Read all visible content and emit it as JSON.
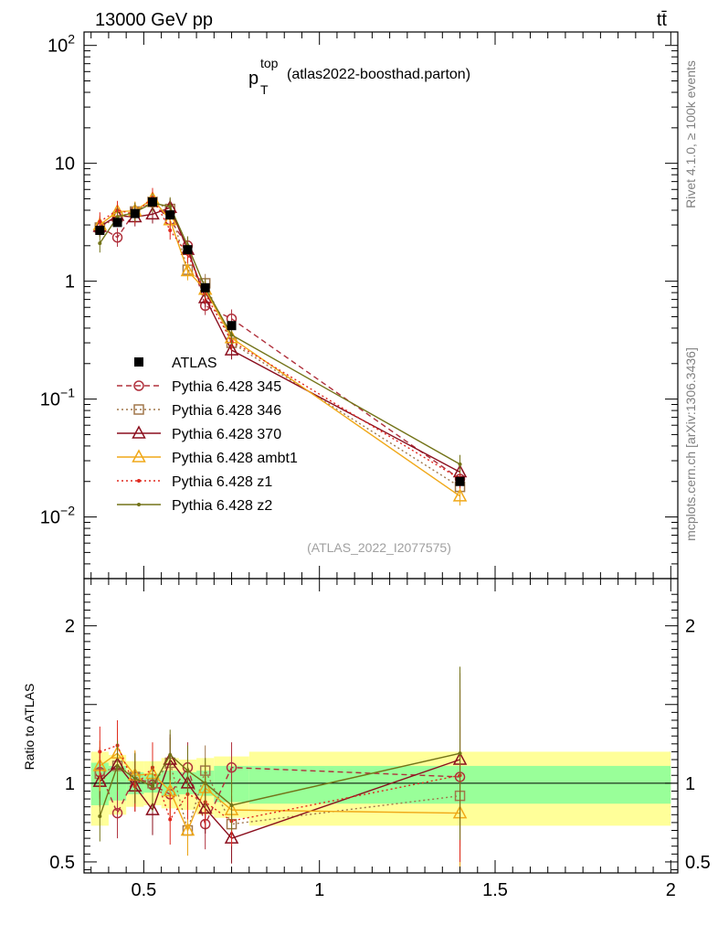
{
  "header": {
    "left_label": "13000 GeV pp",
    "right_label": "tt̄"
  },
  "main_panel": {
    "observable_symbol": "p",
    "observable_sub": "T",
    "observable_sup": "top",
    "observable_note": "(atlas2022-boosthad.parton)",
    "analysis_id": "(ATLAS_2022_I2077575)"
  },
  "side_labels": {
    "rivet": "Rivet 4.1.0, ≥ 100k events",
    "mcplots": "mcplots.cern.ch [arXiv:1306.3436]"
  },
  "ratio_panel": {
    "ylabel": "Ratio to ATLAS"
  },
  "chart_data": {
    "type": "line",
    "title": "p_T^top (atlas2022-boosthad.parton)",
    "xlabel": "",
    "ylabel": "",
    "x": [
      0.375,
      0.425,
      0.475,
      0.525,
      0.575,
      0.625,
      0.675,
      0.75,
      1.4
    ],
    "xlim": [
      0.33,
      2.02
    ],
    "ylim": [
      0.003,
      130
    ],
    "yscale": "log",
    "y_ticks": [
      {
        "value": 0.01,
        "base": "10",
        "exp": "−2"
      },
      {
        "value": 0.1,
        "base": "10",
        "exp": "−1"
      },
      {
        "value": 1,
        "base": "1",
        "exp": ""
      },
      {
        "value": 10,
        "base": "10",
        "exp": ""
      },
      {
        "value": 100,
        "base": "10",
        "exp": "2"
      }
    ],
    "x_ticks": [
      {
        "value": 0.5,
        "label": "0.5"
      },
      {
        "value": 1.0,
        "label": "1"
      },
      {
        "value": 1.5,
        "label": "1.5"
      },
      {
        "value": 2.0,
        "label": "2"
      }
    ],
    "data_series": {
      "name": "ATLAS",
      "values": [
        2.7,
        3.15,
        3.75,
        4.7,
        3.65,
        1.85,
        0.88,
        0.42,
        0.02
      ]
    },
    "series": [
      {
        "name": "Pythia 6.428 345",
        "color": "#b0303c",
        "style": "dashed",
        "marker": "circle",
        "values": [
          2.9,
          2.35,
          3.9,
          4.65,
          3.3,
          2.0,
          0.62,
          0.48,
          0.021
        ]
      },
      {
        "name": "Pythia 6.428 346",
        "color": "#a0764a",
        "style": "dotted",
        "marker": "square",
        "values": [
          2.85,
          3.5,
          3.9,
          4.7,
          4.1,
          1.25,
          0.96,
          0.3,
          0.018
        ]
      },
      {
        "name": "Pythia 6.428 370",
        "color": "#8b0f1e",
        "style": "solid",
        "marker": "triangle",
        "values": [
          2.9,
          3.6,
          3.5,
          3.7,
          4.2,
          1.85,
          0.72,
          0.26,
          0.024
        ]
      },
      {
        "name": "Pythia 6.428 ambt1",
        "color": "#f0a818",
        "style": "solid",
        "marker": "triangle",
        "values": [
          3.0,
          3.9,
          3.95,
          5.0,
          3.3,
          1.22,
          0.85,
          0.33,
          0.015
        ]
      },
      {
        "name": "Pythia 6.428 z1",
        "color": "#e0281e",
        "style": "dotted",
        "marker": "dot",
        "values": [
          3.2,
          4.0,
          3.7,
          5.15,
          2.7,
          1.7,
          0.78,
          0.31,
          0.021
        ]
      },
      {
        "name": "Pythia 6.428 z2",
        "color": "#737318",
        "style": "solid",
        "marker": "dot",
        "values": [
          2.1,
          3.5,
          3.85,
          4.6,
          4.3,
          2.0,
          0.88,
          0.35,
          0.028
        ]
      }
    ],
    "ratio": {
      "ylim": [
        0.43,
        2.3
      ],
      "y_ticks": [
        {
          "value": 0.5,
          "label": "0.5"
        },
        {
          "value": 1,
          "label": "1"
        },
        {
          "value": 2,
          "label": "2"
        }
      ],
      "bands": [
        {
          "x0": 0.35,
          "x1": 0.4,
          "inner": [
            0.86,
            1.13
          ],
          "outer": [
            0.73,
            1.2
          ]
        },
        {
          "x0": 0.4,
          "x1": 0.45,
          "inner": [
            0.89,
            1.11
          ],
          "outer": [
            0.8,
            1.18
          ]
        },
        {
          "x0": 0.45,
          "x1": 0.5,
          "inner": [
            0.93,
            1.07
          ],
          "outer": [
            0.85,
            1.14
          ]
        },
        {
          "x0": 0.5,
          "x1": 0.55,
          "inner": [
            0.94,
            1.06
          ],
          "outer": [
            0.86,
            1.14
          ]
        },
        {
          "x0": 0.55,
          "x1": 0.6,
          "inner": [
            0.92,
            1.08
          ],
          "outer": [
            0.84,
            1.16
          ]
        },
        {
          "x0": 0.6,
          "x1": 0.65,
          "inner": [
            0.93,
            1.07
          ],
          "outer": [
            0.83,
            1.15
          ]
        },
        {
          "x0": 0.65,
          "x1": 0.7,
          "inner": [
            0.92,
            1.08
          ],
          "outer": [
            0.8,
            1.16
          ]
        },
        {
          "x0": 0.7,
          "x1": 0.8,
          "inner": [
            0.88,
            1.11
          ],
          "outer": [
            0.78,
            1.17
          ]
        },
        {
          "x0": 0.8,
          "x1": 2.0,
          "inner": [
            0.87,
            1.11
          ],
          "outer": [
            0.73,
            1.2
          ]
        }
      ],
      "series": [
        {
          "name": "Pythia 6.428 345",
          "values": [
            1.07,
            0.81,
            1.04,
            0.99,
            0.93,
            1.1,
            0.74,
            1.1,
            1.04
          ]
        },
        {
          "name": "Pythia 6.428 346",
          "values": [
            1.06,
            1.11,
            1.04,
            1.0,
            1.13,
            0.7,
            1.08,
            0.74,
            0.92
          ]
        },
        {
          "name": "Pythia 6.428 370",
          "values": [
            1.01,
            1.12,
            0.98,
            0.83,
            1.15,
            1.0,
            0.84,
            0.65,
            1.15
          ]
        },
        {
          "name": "Pythia 6.428 ambt1",
          "values": [
            1.11,
            1.19,
            1.05,
            1.06,
            0.95,
            0.7,
            0.97,
            0.83,
            0.81
          ]
        },
        {
          "name": "Pythia 6.428 z1",
          "values": [
            1.2,
            1.24,
            0.98,
            1.1,
            0.77,
            0.93,
            0.88,
            0.76,
            1.05
          ]
        },
        {
          "name": "Pythia 6.428 z2",
          "values": [
            0.79,
            1.11,
            1.03,
            0.98,
            1.18,
            1.08,
            1.0,
            0.86,
            1.19
          ]
        }
      ]
    }
  }
}
